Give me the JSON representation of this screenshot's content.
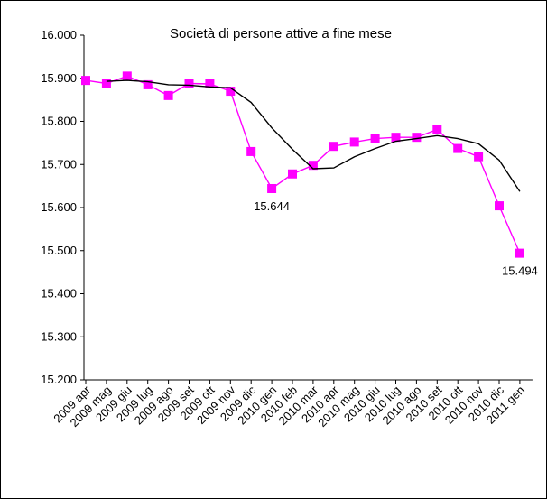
{
  "chart_data": {
    "type": "line",
    "title": "Società di persone attive a fine mese",
    "xlabel": "",
    "ylabel": "",
    "ylim": [
      15200,
      16000
    ],
    "yticks": [
      15200,
      15300,
      15400,
      15500,
      15600,
      15700,
      15800,
      15900,
      16000
    ],
    "ytick_labels": [
      "15.200",
      "15.300",
      "15.400",
      "15.500",
      "15.600",
      "15.700",
      "15.800",
      "15.900",
      "16.000"
    ],
    "categories": [
      "2009 apr",
      "2009 mag",
      "2009 giu",
      "2009 lug",
      "2009 ago",
      "2009 set",
      "2009 ott",
      "2009 nov",
      "2009 dic",
      "2010 gen",
      "2010 feb",
      "2010 mar",
      "2010 apr",
      "2010 mag",
      "2010 giu",
      "2010 lug",
      "2010 ago",
      "2010 set",
      "2010 ott",
      "2010 nov",
      "2010 dic",
      "2011 gen"
    ],
    "grid": false,
    "legend": "none",
    "series": [
      {
        "role": "markers",
        "color": "#ff00ff",
        "marker": "square",
        "values": [
          15895,
          15888,
          15905,
          15885,
          15860,
          15888,
          15887,
          15870,
          15730,
          15644,
          15678,
          15698,
          15742,
          15752,
          15760,
          15763,
          15763,
          15781,
          15737,
          15718,
          15604,
          15494
        ]
      },
      {
        "role": "smooth",
        "color": "#000000",
        "marker": "none",
        "values": [
          null,
          15893,
          15895,
          15892,
          15885,
          15884,
          15880,
          15878,
          15844,
          15785,
          15735,
          15690,
          15692,
          15718,
          15737,
          15754,
          15760,
          15767,
          15760,
          15748,
          15710,
          15637
        ]
      }
    ],
    "annotations": [
      {
        "index": 9,
        "text": "15.644"
      },
      {
        "index": 21,
        "text": "15.494"
      }
    ]
  }
}
